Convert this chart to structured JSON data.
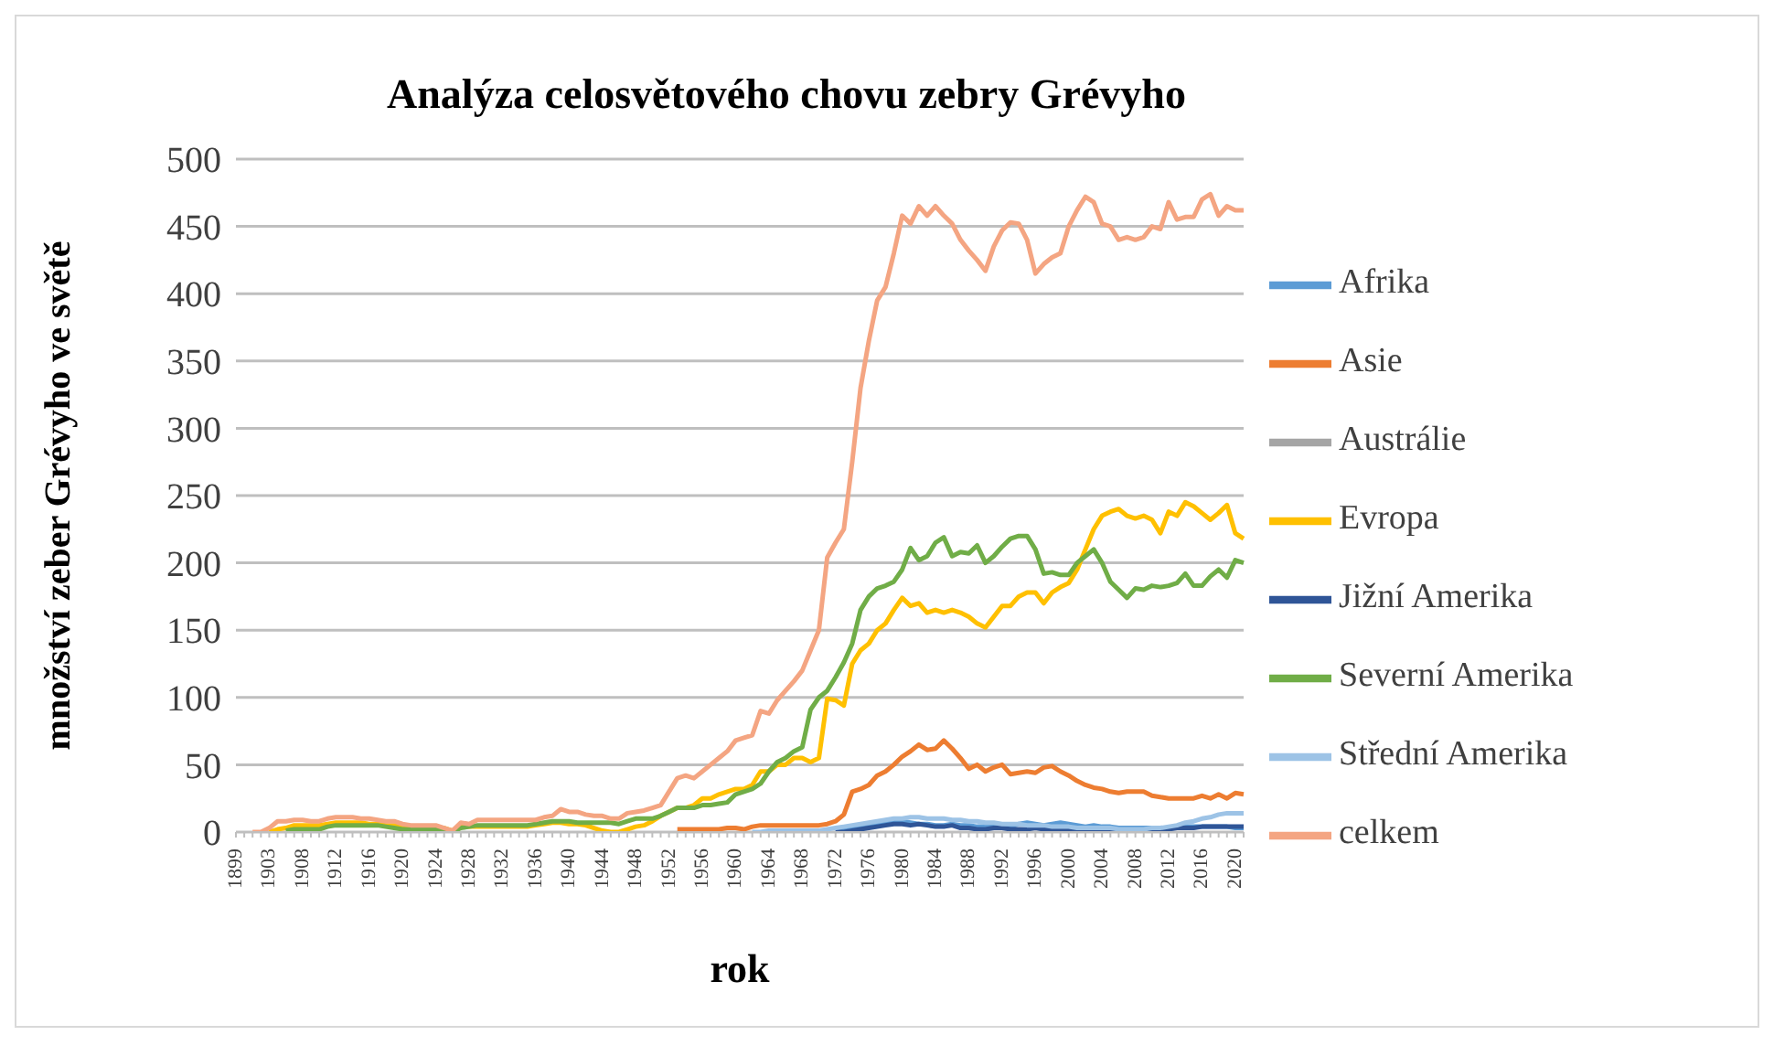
{
  "chart_data": {
    "type": "line",
    "title": "Analýza celosvětového chovu zebry Grévyho",
    "xlabel": "rok",
    "ylabel": "množství zeber Grévyho ve světě",
    "categories": [
      "1899",
      null,
      null,
      null,
      "1903",
      null,
      null,
      null,
      "1908",
      null,
      null,
      null,
      "1912",
      null,
      null,
      null,
      "1916",
      null,
      null,
      null,
      "1920",
      null,
      null,
      null,
      "1924",
      null,
      null,
      null,
      "1928",
      null,
      null,
      null,
      "1932",
      null,
      null,
      null,
      "1936",
      null,
      null,
      null,
      "1940",
      null,
      null,
      null,
      "1944",
      null,
      null,
      null,
      "1948",
      null,
      null,
      null,
      "1952",
      null,
      null,
      null,
      "1956",
      null,
      null,
      null,
      "1960",
      null,
      null,
      null,
      "1964",
      null,
      null,
      null,
      "1968",
      null,
      null,
      null,
      "1972",
      null,
      null,
      null,
      "1976",
      null,
      null,
      null,
      "1980",
      null,
      null,
      null,
      "1984",
      null,
      null,
      null,
      "1988",
      null,
      null,
      null,
      "1992",
      null,
      null,
      null,
      "1996",
      null,
      null,
      null,
      "2000",
      null,
      null,
      null,
      "2004",
      null,
      null,
      null,
      "2008",
      null,
      null,
      null,
      "2012",
      null,
      null,
      null,
      "2016",
      null,
      null,
      null,
      "2020",
      null
    ],
    "series": [
      {
        "name": "Afrika",
        "color": "#5b9bd5",
        "values": [
          null,
          null,
          null,
          null,
          null,
          null,
          null,
          null,
          null,
          null,
          null,
          null,
          null,
          null,
          null,
          null,
          null,
          null,
          null,
          null,
          null,
          null,
          null,
          null,
          null,
          null,
          null,
          null,
          null,
          null,
          null,
          null,
          null,
          null,
          null,
          null,
          null,
          null,
          null,
          null,
          null,
          null,
          null,
          null,
          null,
          null,
          null,
          null,
          null,
          null,
          null,
          null,
          null,
          null,
          null,
          null,
          null,
          null,
          null,
          null,
          null,
          null,
          null,
          null,
          null,
          null,
          null,
          null,
          null,
          null,
          null,
          null,
          1,
          2,
          3,
          4,
          5,
          6,
          7,
          7,
          8,
          7,
          6,
          6,
          5,
          5,
          6,
          5,
          5,
          4,
          4,
          5,
          5,
          4,
          6,
          7,
          6,
          5,
          6,
          7,
          6,
          5,
          4,
          5,
          4,
          4,
          3,
          3,
          3,
          3,
          3,
          3,
          3,
          3,
          4,
          4,
          4,
          4,
          4,
          4,
          3,
          3
        ]
      },
      {
        "name": "Asie",
        "color": "#ed7d31",
        "values": [
          null,
          null,
          null,
          null,
          null,
          null,
          null,
          null,
          null,
          null,
          null,
          null,
          null,
          null,
          null,
          null,
          null,
          null,
          null,
          null,
          null,
          null,
          null,
          null,
          null,
          null,
          null,
          null,
          null,
          null,
          null,
          null,
          null,
          null,
          null,
          null,
          null,
          null,
          null,
          null,
          null,
          null,
          null,
          null,
          null,
          null,
          null,
          null,
          null,
          null,
          null,
          null,
          null,
          2,
          2,
          2,
          2,
          2,
          2,
          3,
          3,
          2,
          4,
          5,
          5,
          5,
          5,
          5,
          5,
          5,
          5,
          6,
          8,
          13,
          30,
          32,
          35,
          42,
          45,
          50,
          56,
          60,
          65,
          61,
          62,
          68,
          62,
          55,
          47,
          50,
          45,
          48,
          50,
          43,
          44,
          45,
          44,
          48,
          49,
          45,
          42,
          38,
          35,
          33,
          32,
          30,
          29,
          30,
          30,
          30,
          27,
          26,
          25,
          25,
          25,
          25,
          27,
          25,
          28,
          25,
          29,
          28
        ]
      },
      {
        "name": "Austrálie",
        "color": "#a5a5a5",
        "values": [
          null,
          null,
          null,
          null,
          null,
          null,
          null,
          null,
          null,
          null,
          null,
          null,
          null,
          null,
          null,
          null,
          null,
          null,
          null,
          null,
          null,
          null,
          null,
          null,
          null,
          null,
          null,
          null,
          null,
          null,
          null,
          null,
          null,
          null,
          null,
          null,
          null,
          null,
          null,
          null,
          null,
          null,
          null,
          null,
          null,
          null,
          null,
          null,
          null,
          null,
          null,
          null,
          null,
          null,
          null,
          null,
          null,
          null,
          null,
          null,
          null,
          null,
          null,
          null,
          null,
          null,
          null,
          null,
          null,
          null,
          null,
          null,
          null,
          null,
          null,
          null,
          null,
          null,
          null,
          null,
          null,
          null,
          null,
          null,
          null,
          null,
          null,
          null,
          null,
          null,
          null,
          null,
          null,
          null,
          null,
          null,
          null,
          null,
          null,
          null,
          null,
          null,
          null,
          null,
          null,
          null,
          null,
          null,
          null,
          null,
          null,
          null,
          null,
          null,
          null,
          null,
          null,
          null,
          null,
          null,
          null,
          null
        ]
      },
      {
        "name": "Evropa",
        "color": "#ffc000",
        "values": [
          null,
          null,
          null,
          null,
          0,
          2,
          3,
          5,
          5,
          5,
          5,
          6,
          7,
          7,
          7,
          7,
          6,
          6,
          5,
          5,
          4,
          3,
          3,
          3,
          3,
          3,
          1,
          4,
          4,
          4,
          4,
          4,
          4,
          4,
          4,
          4,
          5,
          6,
          7,
          7,
          6,
          6,
          5,
          3,
          1,
          0,
          0,
          2,
          4,
          5,
          8,
          12,
          15,
          18,
          18,
          20,
          25,
          25,
          28,
          30,
          32,
          32,
          35,
          45,
          45,
          50,
          50,
          55,
          55,
          52,
          55,
          99,
          98,
          94,
          125,
          135,
          140,
          150,
          155,
          165,
          174,
          168,
          170,
          163,
          165,
          163,
          165,
          163,
          160,
          155,
          152,
          160,
          168,
          168,
          175,
          178,
          178,
          170,
          178,
          182,
          185,
          195,
          210,
          225,
          235,
          238,
          240,
          235,
          233,
          235,
          232,
          222,
          238,
          235,
          245,
          242,
          237,
          232,
          237,
          243,
          222,
          218
        ]
      },
      {
        "name": "Jižní Amerika",
        "color": "#2f5597",
        "values": [
          null,
          null,
          null,
          null,
          null,
          null,
          null,
          null,
          null,
          null,
          null,
          null,
          null,
          null,
          null,
          null,
          null,
          null,
          null,
          null,
          null,
          null,
          null,
          null,
          null,
          null,
          null,
          null,
          null,
          null,
          null,
          null,
          null,
          null,
          null,
          null,
          null,
          null,
          null,
          null,
          null,
          null,
          null,
          null,
          null,
          null,
          null,
          null,
          null,
          null,
          null,
          null,
          null,
          null,
          null,
          null,
          null,
          null,
          null,
          null,
          null,
          null,
          null,
          null,
          null,
          null,
          null,
          null,
          null,
          null,
          null,
          null,
          0,
          0,
          1,
          2,
          3,
          4,
          5,
          6,
          6,
          5,
          6,
          5,
          4,
          4,
          5,
          3,
          3,
          2,
          2,
          3,
          3,
          2,
          2,
          2,
          3,
          2,
          2,
          2,
          1,
          1,
          1,
          1,
          1,
          0,
          0,
          0,
          1,
          1,
          1,
          2,
          2,
          3,
          3,
          3,
          4,
          4,
          4,
          4,
          4,
          4
        ]
      },
      {
        "name": "Severní Amerika",
        "color": "#70ad47",
        "values": [
          null,
          null,
          null,
          null,
          null,
          null,
          1,
          2,
          2,
          2,
          2,
          4,
          5,
          5,
          5,
          5,
          5,
          5,
          4,
          3,
          2,
          2,
          2,
          2,
          2,
          1,
          0,
          3,
          4,
          5,
          5,
          5,
          5,
          5,
          5,
          5,
          6,
          7,
          8,
          8,
          8,
          7,
          7,
          7,
          7,
          7,
          6,
          8,
          10,
          10,
          10,
          12,
          15,
          18,
          18,
          18,
          20,
          20,
          21,
          22,
          28,
          30,
          32,
          36,
          45,
          52,
          55,
          60,
          63,
          91,
          100,
          105,
          115,
          126,
          140,
          165,
          175,
          181,
          183,
          186,
          195,
          211,
          202,
          205,
          215,
          219,
          205,
          208,
          207,
          213,
          200,
          205,
          212,
          218,
          220,
          220,
          210,
          192,
          193,
          191,
          191,
          200,
          205,
          210,
          200,
          186,
          180,
          174,
          181,
          180,
          183,
          182,
          183,
          185,
          192,
          183,
          183,
          190,
          195,
          189,
          202,
          200
        ]
      },
      {
        "name": "Střední Amerika",
        "color": "#9dc3e6",
        "values": [
          null,
          null,
          null,
          null,
          null,
          null,
          null,
          null,
          null,
          null,
          null,
          null,
          null,
          null,
          null,
          null,
          null,
          null,
          null,
          null,
          null,
          null,
          null,
          null,
          null,
          null,
          null,
          null,
          null,
          null,
          null,
          null,
          null,
          null,
          null,
          null,
          null,
          null,
          null,
          null,
          null,
          null,
          null,
          null,
          null,
          null,
          null,
          null,
          null,
          null,
          null,
          null,
          null,
          null,
          null,
          null,
          null,
          null,
          null,
          null,
          null,
          null,
          0,
          0,
          1,
          1,
          1,
          1,
          1,
          1,
          1,
          2,
          3,
          4,
          5,
          6,
          7,
          8,
          9,
          10,
          10,
          11,
          11,
          10,
          10,
          10,
          9,
          9,
          8,
          8,
          7,
          7,
          6,
          6,
          6,
          5,
          5,
          5,
          4,
          4,
          4,
          3,
          3,
          3,
          3,
          3,
          2,
          2,
          2,
          2,
          3,
          3,
          4,
          5,
          7,
          8,
          10,
          11,
          13,
          14,
          14,
          14
        ]
      },
      {
        "name": "celkem",
        "color": "#f4a582",
        "values": [
          null,
          null,
          0,
          0,
          3,
          8,
          8,
          9,
          9,
          8,
          8,
          10,
          11,
          11,
          11,
          10,
          10,
          9,
          8,
          8,
          6,
          5,
          5,
          5,
          5,
          3,
          1,
          7,
          6,
          9,
          9,
          9,
          9,
          9,
          9,
          9,
          9,
          11,
          12,
          17,
          15,
          15,
          13,
          12,
          12,
          10,
          10,
          14,
          15,
          16,
          18,
          20,
          30,
          40,
          42,
          40,
          45,
          50,
          55,
          60,
          68,
          70,
          72,
          90,
          88,
          98,
          105,
          112,
          120,
          135,
          150,
          204,
          215,
          225,
          275,
          330,
          365,
          395,
          405,
          430,
          458,
          452,
          465,
          458,
          465,
          458,
          452,
          440,
          432,
          425,
          417,
          435,
          447,
          453,
          452,
          440,
          415,
          422,
          427,
          430,
          450,
          462,
          472,
          468,
          452,
          450,
          440,
          442,
          440,
          442,
          450,
          448,
          468,
          455,
          457,
          457,
          470,
          474,
          458,
          465,
          462,
          462
        ]
      }
    ],
    "ylim": [
      0,
      500
    ],
    "yticks": [
      0,
      50,
      100,
      150,
      200,
      250,
      300,
      350,
      400,
      450,
      500
    ],
    "grid": "y",
    "legend": "right",
    "marker": "none",
    "line_style": "solid"
  }
}
